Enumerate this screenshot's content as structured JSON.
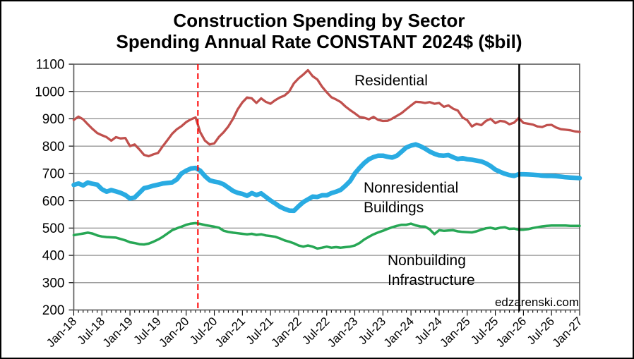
{
  "page": {
    "background": "#FFFFFF",
    "border_color": "#000000"
  },
  "chart": {
    "title_line1": "Construction Spending by Sector",
    "title_line2": "Spending Annual Rate CONSTANT 2024$ ($bil)",
    "watermark": "edzarenski.com",
    "watermark_color": "#C00000",
    "series_labels": {
      "residential": "Residential",
      "nonresidential_line1": "Nonresidential",
      "nonresidential_line2": "Buildings",
      "nonbuilding_line1": "Nonbuilding",
      "nonbuilding_line2": "Infrastructure"
    }
  },
  "chart_data": {
    "type": "line",
    "title": "Construction Spending by Sector",
    "subtitle": "Spending Annual Rate CONSTANT 2024$ ($bil)",
    "x_interval": "monthly",
    "x_start": "Jan-18",
    "x_end": "Jan-27",
    "n_points": 109,
    "months_per_major_tick": 6,
    "x_tick_labels": [
      "Jan-18",
      "Jul-18",
      "Jan-19",
      "Jul-19",
      "Jan-20",
      "Jul-20",
      "Jan-21",
      "Jul-21",
      "Jan-22",
      "Jul-22",
      "Jan-23",
      "Jul-23",
      "Jan-24",
      "Jul-24",
      "Jan-25",
      "Jul-25",
      "Jan-26",
      "Jul-26",
      "Jan-27"
    ],
    "ylim": [
      200,
      1100
    ],
    "ytick_interval": 100,
    "y_ticks": [
      200,
      300,
      400,
      500,
      600,
      700,
      800,
      900,
      1000,
      1100
    ],
    "grid": "horizontal",
    "legend": "in-plot text labels",
    "gridline_color": "#7F7F7F",
    "frame_color": "#595959",
    "series": [
      {
        "name": "Residential",
        "color": "#C0504D",
        "line_width": 3.3,
        "values": [
          896,
          908,
          898,
          880,
          863,
          848,
          840,
          833,
          820,
          833,
          828,
          830,
          800,
          806,
          788,
          768,
          763,
          770,
          775,
          800,
          822,
          845,
          862,
          873,
          888,
          898,
          905,
          851,
          820,
          806,
          810,
          834,
          851,
          872,
          900,
          935,
          960,
          978,
          975,
          958,
          975,
          962,
          955,
          968,
          978,
          985,
          1000,
          1030,
          1048,
          1062,
          1078,
          1056,
          1044,
          1018,
          997,
          979,
          971,
          961,
          945,
          932,
          920,
          907,
          904,
          898,
          907,
          896,
          892,
          893,
          901,
          911,
          921,
          935,
          949,
          962,
          961,
          958,
          961,
          955,
          958,
          944,
          949,
          937,
          930,
          905,
          895,
          872,
          882,
          877,
          892,
          900,
          884,
          892,
          890,
          880,
          886,
          903,
          885,
          882,
          879,
          872,
          870,
          877,
          878,
          868,
          862,
          860,
          858,
          854,
          852
        ]
      },
      {
        "name": "Nonresidential Buildings",
        "color": "#29ABE2",
        "line_width": 6.5,
        "values": [
          658,
          663,
          656,
          667,
          662,
          659,
          642,
          633,
          639,
          634,
          629,
          621,
          608,
          612,
          629,
          646,
          650,
          655,
          659,
          663,
          665,
          667,
          678,
          700,
          710,
          718,
          720,
          710,
          690,
          675,
          670,
          667,
          660,
          648,
          636,
          629,
          625,
          618,
          628,
          621,
          627,
          614,
          601,
          590,
          578,
          570,
          564,
          563,
          580,
          595,
          605,
          615,
          614,
          620,
          620,
          628,
          633,
          640,
          655,
          672,
          700,
          720,
          738,
          752,
          760,
          765,
          765,
          761,
          758,
          765,
          780,
          795,
          802,
          806,
          800,
          791,
          780,
          772,
          766,
          765,
          767,
          759,
          753,
          756,
          752,
          750,
          747,
          744,
          737,
          727,
          714,
          706,
          699,
          694,
          691,
          697,
          697,
          696,
          695,
          694,
          692,
          691,
          691,
          690,
          688,
          686,
          685,
          684,
          683
        ]
      },
      {
        "name": "Nonbuilding Infrastructure",
        "color": "#27A755",
        "line_width": 3.5,
        "values": [
          474,
          477,
          480,
          483,
          480,
          473,
          469,
          467,
          466,
          465,
          460,
          455,
          448,
          445,
          441,
          440,
          443,
          450,
          458,
          468,
          480,
          492,
          499,
          505,
          512,
          516,
          518,
          515,
          511,
          508,
          505,
          501,
          490,
          486,
          483,
          481,
          479,
          477,
          479,
          475,
          477,
          473,
          471,
          468,
          462,
          455,
          450,
          444,
          436,
          432,
          436,
          432,
          425,
          428,
          432,
          428,
          430,
          428,
          430,
          432,
          436,
          445,
          458,
          468,
          477,
          484,
          490,
          497,
          503,
          508,
          512,
          512,
          516,
          510,
          506,
          505,
          495,
          478,
          492,
          490,
          491,
          492,
          488,
          486,
          485,
          484,
          488,
          494,
          499,
          501,
          497,
          501,
          503,
          497,
          498,
          494,
          494,
          496,
          500,
          503,
          506,
          508,
          509,
          509,
          509,
          509,
          508,
          508,
          508
        ]
      }
    ],
    "event_lines": [
      {
        "name": "red-dashed-vline",
        "near_x": "Mar-20",
        "month_index": 26.5,
        "color": "#FF0000",
        "style": "dashed",
        "width": 2
      },
      {
        "name": "black-solid-vline",
        "near_x": "Dec-25",
        "month_index": 95.1,
        "color": "#000000",
        "style": "solid",
        "width": 2.5
      }
    ]
  }
}
